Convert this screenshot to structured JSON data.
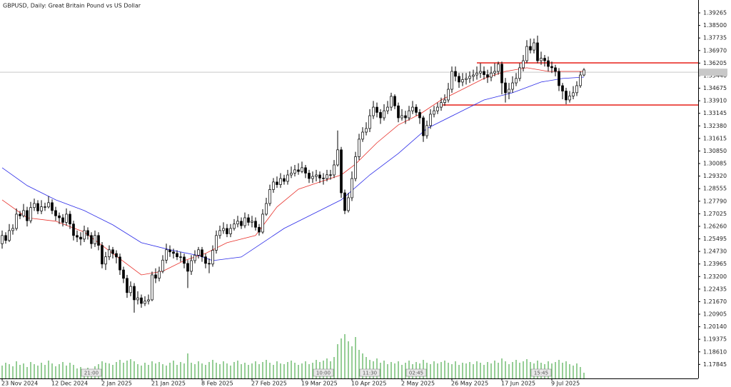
{
  "chart_data": {
    "type": "candlestick",
    "title": "GBPUSD, Daily:  Great Britain Pound vs US Dollar",
    "open": [
      1.252,
      1.257,
      1.254,
      1.26,
      1.2613,
      1.27,
      1.269,
      1.2722,
      1.266,
      1.274,
      1.2765,
      1.272,
      1.2745,
      1.2744,
      1.277,
      1.2722,
      1.269,
      1.2678,
      1.265,
      1.27,
      1.264,
      1.257,
      1.256,
      1.2548,
      1.26,
      1.257,
      1.252,
      1.257,
      1.251,
      1.2396,
      1.244,
      1.2483,
      1.246,
      1.2439,
      1.236,
      1.2309,
      1.2222,
      1.226,
      1.2178,
      1.219,
      1.2156,
      1.217,
      1.2178,
      1.233,
      1.231,
      1.2352,
      1.242,
      1.2483,
      1.247,
      1.2461,
      1.244,
      1.2439,
      1.24,
      1.2352,
      1.2417,
      1.245,
      1.2483,
      1.244,
      1.24,
      1.2396,
      1.248,
      1.257,
      1.26,
      1.2613,
      1.258,
      1.2613,
      1.264,
      1.2657,
      1.263,
      1.2678,
      1.265,
      1.2657,
      1.262,
      1.2591,
      1.27,
      1.2765,
      1.285,
      1.2896,
      1.288,
      1.2917,
      1.29,
      1.2939,
      1.295,
      1.297,
      1.296,
      1.2983,
      1.295,
      1.2917,
      1.293,
      1.2939,
      1.292,
      1.2917,
      1.294,
      1.2939,
      1.3,
      1.3092,
      1.283,
      1.2722,
      1.28,
      1.2917,
      1.305,
      1.3157,
      1.32,
      1.3222,
      1.33,
      1.3352,
      1.332,
      1.3287,
      1.333,
      1.3352,
      1.3418,
      1.336,
      1.3287,
      1.33,
      1.3287,
      1.333,
      1.3352,
      1.332,
      1.3287,
      1.3178,
      1.324,
      1.3309,
      1.333,
      1.3352,
      1.338,
      1.3396,
      1.3461,
      1.357,
      1.354,
      1.3505,
      1.352,
      1.3527,
      1.354,
      1.3548,
      1.356,
      1.357,
      1.355,
      1.3535,
      1.356,
      1.357,
      1.3614,
      1.35,
      1.344,
      1.3461,
      1.35,
      1.3527,
      1.3592,
      1.3635,
      1.3722,
      1.37,
      1.3744,
      1.3635,
      1.365,
      1.3635,
      1.36,
      1.3592,
      1.357,
      1.3483,
      1.345,
      1.3396,
      1.342,
      1.344,
      1.3483,
      1.3548
    ],
    "high": [
      1.26,
      1.259,
      1.264,
      1.2638,
      1.2735,
      1.272,
      1.2762,
      1.2745,
      1.2775,
      1.2795,
      1.2785,
      1.2785,
      1.277,
      1.281,
      1.279,
      1.2745,
      1.271,
      1.27,
      1.2735,
      1.272,
      1.266,
      1.26,
      1.259,
      1.263,
      1.262,
      1.259,
      1.26,
      1.259,
      1.253,
      1.247,
      1.251,
      1.25,
      1.248,
      1.246,
      1.238,
      1.233,
      1.229,
      1.228,
      1.223,
      1.221,
      1.22,
      1.221,
      1.235,
      1.237,
      1.238,
      1.245,
      1.252,
      1.251,
      1.249,
      1.248,
      1.247,
      1.246,
      1.242,
      1.245,
      1.248,
      1.25,
      1.25,
      1.246,
      1.243,
      1.251,
      1.26,
      1.263,
      1.265,
      1.264,
      1.264,
      1.267,
      1.269,
      1.268,
      1.271,
      1.27,
      1.269,
      1.268,
      1.264,
      1.273,
      1.28,
      1.288,
      1.292,
      1.293,
      1.295,
      1.294,
      1.297,
      1.299,
      1.3,
      1.301,
      1.302,
      1.3,
      1.297,
      1.296,
      1.297,
      1.296,
      1.295,
      1.297,
      1.297,
      1.303,
      1.321,
      1.311,
      1.285,
      1.283,
      1.296,
      1.308,
      1.319,
      1.323,
      1.326,
      1.334,
      1.339,
      1.338,
      1.334,
      1.337,
      1.339,
      1.344,
      1.343,
      1.338,
      1.334,
      1.333,
      1.336,
      1.339,
      1.337,
      1.334,
      1.33,
      1.327,
      1.334,
      1.336,
      1.338,
      1.341,
      1.343,
      1.35,
      1.36,
      1.36,
      1.356,
      1.356,
      1.356,
      1.357,
      1.358,
      1.36,
      1.362,
      1.36,
      1.358,
      1.36,
      1.362,
      1.363,
      1.363,
      1.353,
      1.35,
      1.354,
      1.356,
      1.362,
      1.367,
      1.376,
      1.377,
      1.377,
      1.3788,
      1.369,
      1.367,
      1.366,
      1.363,
      1.361,
      1.359,
      1.35,
      1.347,
      1.345,
      1.348,
      1.351,
      1.357,
      1.359
    ],
    "low": [
      1.249,
      1.252,
      1.253,
      1.2575,
      1.26,
      1.267,
      1.268,
      1.2625,
      1.2645,
      1.272,
      1.27,
      1.27,
      1.272,
      1.2735,
      1.27,
      1.266,
      1.264,
      1.2625,
      1.263,
      1.261,
      1.254,
      1.253,
      1.251,
      1.253,
      1.2545,
      1.249,
      1.25,
      1.248,
      1.237,
      1.236,
      1.242,
      1.243,
      1.24,
      1.233,
      1.228,
      1.219,
      1.22,
      1.21,
      1.215,
      1.213,
      1.214,
      1.215,
      1.217,
      1.228,
      1.229,
      1.234,
      1.24,
      1.244,
      1.243,
      1.242,
      1.241,
      1.237,
      1.225,
      1.233,
      1.24,
      1.243,
      1.241,
      1.237,
      1.234,
      1.238,
      1.246,
      1.255,
      1.258,
      1.256,
      1.256,
      1.26,
      1.262,
      1.261,
      1.2615,
      1.263,
      1.262,
      1.26,
      1.257,
      1.258,
      1.269,
      1.275,
      1.283,
      1.286,
      1.286,
      1.288,
      1.288,
      1.292,
      1.293,
      1.294,
      1.295,
      1.292,
      1.289,
      1.289,
      1.29,
      1.289,
      1.288,
      1.29,
      1.291,
      1.292,
      1.299,
      1.28,
      1.27,
      1.271,
      1.278,
      1.29,
      1.303,
      1.314,
      1.318,
      1.32,
      1.328,
      1.329,
      1.325,
      1.327,
      1.331,
      1.333,
      1.334,
      1.326,
      1.327,
      1.325,
      1.327,
      1.331,
      1.33,
      1.325,
      1.314,
      1.316,
      1.322,
      1.329,
      1.331,
      1.333,
      1.336,
      1.338,
      1.344,
      1.351,
      1.347,
      1.348,
      1.349,
      1.35,
      1.351,
      1.352,
      1.353,
      1.352,
      1.35,
      1.351,
      1.354,
      1.355,
      1.343,
      1.338,
      1.34,
      1.344,
      1.348,
      1.351,
      1.357,
      1.362,
      1.368,
      1.368,
      1.362,
      1.361,
      1.36,
      1.357,
      1.356,
      1.354,
      1.345,
      1.34,
      1.337,
      1.338,
      1.34,
      1.342,
      1.347,
      1.354
    ],
    "close": [
      1.257,
      1.254,
      1.26,
      1.2613,
      1.27,
      1.269,
      1.2722,
      1.266,
      1.274,
      1.2765,
      1.272,
      1.2745,
      1.2744,
      1.277,
      1.2722,
      1.269,
      1.2678,
      1.265,
      1.27,
      1.264,
      1.257,
      1.256,
      1.2548,
      1.26,
      1.257,
      1.252,
      1.257,
      1.251,
      1.2396,
      1.244,
      1.2483,
      1.246,
      1.2439,
      1.236,
      1.2309,
      1.2222,
      1.226,
      1.2178,
      1.219,
      1.2156,
      1.217,
      1.2178,
      1.233,
      1.231,
      1.2352,
      1.242,
      1.2483,
      1.247,
      1.2461,
      1.244,
      1.2439,
      1.24,
      1.2352,
      1.2417,
      1.245,
      1.2483,
      1.244,
      1.24,
      1.2396,
      1.248,
      1.257,
      1.26,
      1.2613,
      1.258,
      1.2613,
      1.264,
      1.2657,
      1.263,
      1.2678,
      1.265,
      1.2657,
      1.262,
      1.2591,
      1.27,
      1.2765,
      1.285,
      1.2896,
      1.288,
      1.2917,
      1.29,
      1.2939,
      1.295,
      1.297,
      1.296,
      1.2983,
      1.295,
      1.2917,
      1.293,
      1.2939,
      1.292,
      1.2917,
      1.294,
      1.2939,
      1.3,
      1.3092,
      1.283,
      1.2722,
      1.28,
      1.2917,
      1.305,
      1.3157,
      1.32,
      1.3222,
      1.33,
      1.3352,
      1.332,
      1.3287,
      1.333,
      1.3352,
      1.3418,
      1.336,
      1.3287,
      1.33,
      1.3287,
      1.333,
      1.3352,
      1.332,
      1.3287,
      1.3178,
      1.324,
      1.3309,
      1.333,
      1.3352,
      1.338,
      1.3396,
      1.3461,
      1.357,
      1.354,
      1.3505,
      1.352,
      1.3527,
      1.354,
      1.3548,
      1.356,
      1.357,
      1.355,
      1.3535,
      1.356,
      1.357,
      1.3614,
      1.35,
      1.344,
      1.3461,
      1.35,
      1.3527,
      1.3592,
      1.3635,
      1.3722,
      1.37,
      1.3744,
      1.3635,
      1.365,
      1.3635,
      1.36,
      1.3592,
      1.357,
      1.3483,
      1.345,
      1.3396,
      1.342,
      1.344,
      1.3483,
      1.3548,
      1.3579
    ],
    "volume": [
      18,
      22,
      20,
      17,
      24,
      19,
      21,
      16,
      23,
      20,
      18,
      22,
      19,
      25,
      21,
      17,
      20,
      23,
      18,
      22,
      19,
      14,
      16,
      12,
      15,
      13,
      17,
      20,
      24,
      22,
      21,
      19,
      23,
      26,
      22,
      25,
      27,
      24,
      20,
      18,
      22,
      19,
      24,
      21,
      23,
      20,
      18,
      22,
      25,
      19,
      23,
      21,
      35,
      22,
      20,
      24,
      21,
      19,
      23,
      26,
      22,
      20,
      24,
      21,
      18,
      23,
      25,
      20,
      22,
      19,
      21,
      24,
      20,
      23,
      26,
      22,
      19,
      24,
      21,
      20,
      23,
      25,
      22,
      19,
      21,
      24,
      20,
      22,
      26,
      23,
      25,
      28,
      24,
      30,
      48,
      56,
      62,
      52,
      45,
      58,
      40,
      35,
      30,
      26,
      24,
      28,
      22,
      25,
      20,
      23,
      21,
      24,
      19,
      22,
      25,
      20,
      23,
      21,
      26,
      22,
      20,
      24,
      21,
      23,
      25,
      22,
      20,
      24,
      19,
      22,
      21,
      23,
      20,
      24,
      22,
      19,
      23,
      21,
      25,
      22,
      28,
      24,
      20,
      23,
      26,
      22,
      24,
      27,
      23,
      21,
      25,
      22,
      20,
      24,
      21,
      23,
      26,
      22,
      24,
      20,
      18,
      21,
      16,
      8
    ],
    "volume_color": "#2e9e2e",
    "volume_ylim": [
      0,
      100
    ],
    "bull_color": "#ffffff",
    "bear_color": "#000000",
    "xlim": [
      -0.6,
      195
    ],
    "ylim": [
      1.1699,
      1.4005
    ],
    "yticks": [
      1.17845,
      {
        "value": 1.1861,
        "label": "1.18610"
      },
      1.19375,
      {
        "value": 1.2014,
        "label": "1.20140"
      },
      1.20905,
      {
        "value": 1.2167,
        "label": "1.21670"
      },
      1.22435,
      {
        "value": 1.232,
        "label": "1.23200"
      },
      1.23965,
      {
        "value": 1.2473,
        "label": "1.24730"
      },
      1.25495,
      {
        "value": 1.2626,
        "label": "1.26260"
      },
      1.27025,
      {
        "value": 1.2779,
        "label": "1.27790"
      },
      1.28555,
      {
        "value": 1.2932,
        "label": "1.29320"
      },
      1.30085,
      {
        "value": 1.3085,
        "label": "1.30850"
      },
      1.31615,
      {
        "value": 1.3238,
        "label": "1.32380"
      },
      1.33145,
      {
        "value": 1.3391,
        "label": "1.33910"
      },
      1.34675,
      {
        "value": 1.3544,
        "label": "1.35440"
      },
      1.36205,
      {
        "value": 1.3697,
        "label": "1.36970"
      },
      1.37735,
      {
        "value": 1.385,
        "label": "1.38500"
      },
      1.39265
    ],
    "xticks": [
      {
        "value": 0,
        "label": "23 Nov 2024"
      },
      {
        "value": 14,
        "label": "12 Dec 2024"
      },
      {
        "value": 28,
        "label": "2 Jan 2025"
      },
      {
        "value": 42,
        "label": "21 Jan 2025"
      },
      {
        "value": 56,
        "label": "8 Feb 2025"
      },
      {
        "value": 70,
        "label": "27 Feb 2025"
      },
      {
        "value": 84,
        "label": "19 Mar 2025"
      },
      {
        "value": 98,
        "label": "10 Apr 2025"
      },
      {
        "value": 112,
        "label": "2 May 2025"
      },
      {
        "value": 126,
        "label": "26 May 2025"
      },
      {
        "value": 140,
        "label": "17 Jun 2025"
      },
      {
        "value": 154,
        "label": "9 Jul 2025"
      }
    ],
    "ma": [
      {
        "color": "#e8302a",
        "x": [
          0,
          7,
          15,
          23,
          31,
          39,
          45,
          51,
          57,
          63,
          71,
          77,
          83,
          89,
          95,
          99,
          105,
          111,
          117,
          123,
          129,
          135,
          141,
          147,
          153,
          157,
          163
        ],
        "values": [
          1.2787,
          1.2678,
          1.2657,
          1.2591,
          1.2461,
          1.233,
          1.2352,
          1.2417,
          1.2461,
          1.2526,
          1.257,
          1.2744,
          1.2852,
          1.2896,
          1.2939,
          1.3005,
          1.3135,
          1.3244,
          1.3309,
          1.3396,
          1.3461,
          1.3527,
          1.357,
          1.3592,
          1.357,
          1.357,
          1.357
        ]
      },
      {
        "color": "#2a2ae8",
        "x": [
          0,
          7,
          15,
          23,
          31,
          39,
          47,
          55,
          59,
          67,
          73,
          79,
          87,
          95,
          103,
          111,
          119,
          127,
          135,
          143,
          151,
          157,
          163
        ],
        "values": [
          1.2983,
          1.2874,
          1.2787,
          1.2722,
          1.2635,
          1.2526,
          1.2483,
          1.2448,
          1.2417,
          1.2439,
          1.2526,
          1.2613,
          1.27,
          1.2787,
          1.2939,
          1.307,
          1.3222,
          1.3309,
          1.3396,
          1.344,
          1.3505,
          1.3527,
          1.3535
        ]
      }
    ],
    "levels": [
      {
        "value": 1.3622,
        "start": 133
      },
      {
        "value": 1.3365,
        "start": 123
      }
    ],
    "level_color": "#e8302a",
    "last_price": 1.3565,
    "event_labels": [
      {
        "x": 25,
        "label": "21:00"
      },
      {
        "x": 90,
        "label": "10:00"
      },
      {
        "x": 103,
        "label": "11:30"
      },
      {
        "x": 116,
        "label": "02:45"
      },
      {
        "x": 151,
        "label": "15:45"
      }
    ]
  }
}
